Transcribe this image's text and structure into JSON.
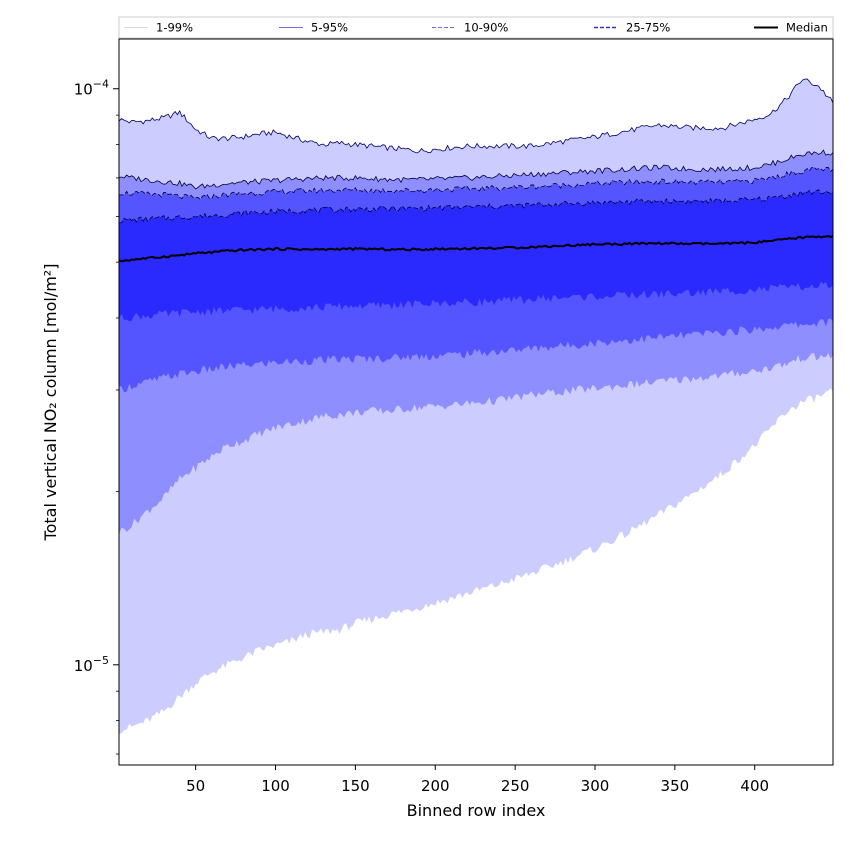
{
  "chart_data": {
    "type": "area",
    "xlabel": "Binned row index",
    "ylabel": "Total vertical NO₂ column [mol/m²]",
    "xlim": [
      2,
      449
    ],
    "ylim": [
      6.7e-06,
      0.000122
    ],
    "yscale": "log",
    "x_ticks": [
      50,
      100,
      150,
      200,
      250,
      300,
      350,
      400
    ],
    "y_major_ticks": [
      {
        "value": 1e-05,
        "base": "10",
        "exp": "−5"
      },
      {
        "value": 0.0001,
        "base": "10",
        "exp": "−4"
      }
    ],
    "y_minor_ticks": [
      7e-06,
      8e-06,
      9e-06,
      2e-05,
      3e-05,
      4e-05,
      5e-05,
      6e-05,
      7e-05,
      8e-05,
      9e-05
    ],
    "legend_position": "top",
    "x": [
      2,
      10,
      20,
      30,
      40,
      50,
      60,
      70,
      80,
      90,
      100,
      110,
      120,
      130,
      140,
      150,
      160,
      170,
      180,
      190,
      200,
      220,
      240,
      260,
      280,
      300,
      320,
      340,
      360,
      380,
      400,
      410,
      420,
      430,
      440,
      449
    ],
    "series": [
      {
        "name": "1-99%",
        "kind": "band",
        "color": "#ccccff",
        "line_color": "#d8d8ee",
        "line_style": "solid",
        "lower": [
          7.7e-06,
          7.8e-06,
          8e-06,
          8.3e-06,
          8.8e-06,
          9.3e-06,
          9.7e-06,
          1e-05,
          1.03e-05,
          1.06e-05,
          1.08e-05,
          1.1e-05,
          1.13e-05,
          1.14e-05,
          1.15e-05,
          1.18e-05,
          1.2e-05,
          1.22e-05,
          1.24e-05,
          1.26e-05,
          1.28e-05,
          1.33e-05,
          1.38e-05,
          1.44e-05,
          1.51e-05,
          1.59e-05,
          1.69e-05,
          1.82e-05,
          1.97e-05,
          2.15e-05,
          2.4e-05,
          2.57e-05,
          2.75e-05,
          2.86e-05,
          2.92e-05,
          2.98e-05
        ],
        "upper": [
          8.85e-05,
          8.75e-05,
          8.8e-05,
          8.9e-05,
          9.1e-05,
          8.5e-05,
          8.2e-05,
          8.2e-05,
          8.25e-05,
          8.35e-05,
          8.4e-05,
          8.25e-05,
          8.1e-05,
          8e-05,
          8.05e-05,
          8e-05,
          7.95e-05,
          7.9e-05,
          7.85e-05,
          7.8e-05,
          7.85e-05,
          7.95e-05,
          7.95e-05,
          7.95e-05,
          8.1e-05,
          8.25e-05,
          8.45e-05,
          8.65e-05,
          8.55e-05,
          8.55e-05,
          8.85e-05,
          9.05e-05,
          9.6e-05,
          0.000104,
          0.000101,
          9.45e-05
        ]
      },
      {
        "name": "5-95%",
        "kind": "band",
        "color": "#8e8eff",
        "line_color": "#7070dd",
        "line_style": "solid",
        "lower": [
          1.7e-05,
          1.75e-05,
          1.85e-05,
          1.95e-05,
          2.1e-05,
          2.2e-05,
          2.3e-05,
          2.4e-05,
          2.45e-05,
          2.52e-05,
          2.58e-05,
          2.62e-05,
          2.66e-05,
          2.7e-05,
          2.72e-05,
          2.74e-05,
          2.76e-05,
          2.76e-05,
          2.78e-05,
          2.8e-05,
          2.81e-05,
          2.84e-05,
          2.88e-05,
          2.94e-05,
          2.98e-05,
          3.02e-05,
          3.06e-05,
          3.1e-05,
          3.14e-05,
          3.18e-05,
          3.24e-05,
          3.28e-05,
          3.33e-05,
          3.42e-05,
          3.42e-05,
          3.45e-05
        ],
        "upper": [
          7.05e-05,
          7e-05,
          6.95e-05,
          6.9e-05,
          6.85e-05,
          6.75e-05,
          6.8e-05,
          6.85e-05,
          6.88e-05,
          6.9e-05,
          6.93e-05,
          6.96e-05,
          6.98e-05,
          7e-05,
          7e-05,
          7e-05,
          6.98e-05,
          6.96e-05,
          6.95e-05,
          6.95e-05,
          6.97e-05,
          7e-05,
          7.05e-05,
          7.1e-05,
          7.15e-05,
          7.2e-05,
          7.25e-05,
          7.3e-05,
          7.25e-05,
          7.25e-05,
          7.3e-05,
          7.4e-05,
          7.55e-05,
          7.7e-05,
          7.75e-05,
          7.75e-05
        ]
      },
      {
        "name": "10-90%",
        "kind": "band",
        "color": "#5555ff",
        "line_color": "#6a6aee",
        "line_style": "dashed",
        "lower": [
          3e-05,
          3.05e-05,
          3.1e-05,
          3.15e-05,
          3.2e-05,
          3.23e-05,
          3.26e-05,
          3.29e-05,
          3.31e-05,
          3.33e-05,
          3.35e-05,
          3.36e-05,
          3.37e-05,
          3.38e-05,
          3.39e-05,
          3.4e-05,
          3.4e-05,
          3.41e-05,
          3.42e-05,
          3.43e-05,
          3.44e-05,
          3.47e-05,
          3.5e-05,
          3.54e-05,
          3.58e-05,
          3.62e-05,
          3.66e-05,
          3.7e-05,
          3.74e-05,
          3.78e-05,
          3.82e-05,
          3.85e-05,
          3.88e-05,
          3.9e-05,
          3.92e-05,
          3.94e-05
        ],
        "upper": [
          6.6e-05,
          6.58e-05,
          6.56e-05,
          6.55e-05,
          6.5e-05,
          6.45e-05,
          6.5e-05,
          6.55e-05,
          6.58e-05,
          6.6e-05,
          6.62e-05,
          6.64e-05,
          6.65e-05,
          6.66e-05,
          6.67e-05,
          6.67e-05,
          6.66e-05,
          6.66e-05,
          6.66e-05,
          6.66e-05,
          6.68e-05,
          6.7e-05,
          6.73e-05,
          6.76e-05,
          6.8e-05,
          6.84e-05,
          6.88e-05,
          6.9e-05,
          6.88e-05,
          6.88e-05,
          6.92e-05,
          7e-05,
          7.1e-05,
          7.2e-05,
          7.25e-05,
          7.25e-05
        ]
      },
      {
        "name": "25-75%",
        "kind": "band",
        "color": "#2a2aff",
        "line_color": "#3333bb",
        "line_style": "dashed",
        "lower": [
          4e-05,
          4.02e-05,
          4.04e-05,
          4.06e-05,
          4.08e-05,
          4.1e-05,
          4.11e-05,
          4.12e-05,
          4.13e-05,
          4.14e-05,
          4.15e-05,
          4.16e-05,
          4.17e-05,
          4.18e-05,
          4.19e-05,
          4.2e-05,
          4.2e-05,
          4.21e-05,
          4.22e-05,
          4.23e-05,
          4.24e-05,
          4.26e-05,
          4.28e-05,
          4.31e-05,
          4.34e-05,
          4.36e-05,
          4.38e-05,
          4.4e-05,
          4.42e-05,
          4.45e-05,
          4.48e-05,
          4.5e-05,
          4.52e-05,
          4.53e-05,
          4.55e-05,
          4.56e-05
        ],
        "upper": [
          5.9e-05,
          5.92e-05,
          5.94e-05,
          5.96e-05,
          5.98e-05,
          6e-05,
          6.02e-05,
          6.05e-05,
          6.08e-05,
          6.1e-05,
          6.12e-05,
          6.14e-05,
          6.15e-05,
          6.16e-05,
          6.17e-05,
          6.18e-05,
          6.18e-05,
          6.19e-05,
          6.19e-05,
          6.2e-05,
          6.21e-05,
          6.23e-05,
          6.25e-05,
          6.28e-05,
          6.31e-05,
          6.34e-05,
          6.36e-05,
          6.38e-05,
          6.38e-05,
          6.38e-05,
          6.42e-05,
          6.46e-05,
          6.52e-05,
          6.6e-05,
          6.62e-05,
          6.62e-05
        ]
      },
      {
        "name": "Median",
        "kind": "line",
        "color": "#000000",
        "line_style": "solid",
        "values": [
          5.02e-05,
          5.05e-05,
          5.08e-05,
          5.11e-05,
          5.14e-05,
          5.18e-05,
          5.2e-05,
          5.23e-05,
          5.25e-05,
          5.26e-05,
          5.27e-05,
          5.27e-05,
          5.26e-05,
          5.26e-05,
          5.27e-05,
          5.27e-05,
          5.27e-05,
          5.26e-05,
          5.26e-05,
          5.26e-05,
          5.27e-05,
          5.28e-05,
          5.29e-05,
          5.31e-05,
          5.34e-05,
          5.37e-05,
          5.38e-05,
          5.39e-05,
          5.38e-05,
          5.38e-05,
          5.41e-05,
          5.44e-05,
          5.48e-05,
          5.52e-05,
          5.54e-05,
          5.55e-05
        ]
      }
    ]
  }
}
